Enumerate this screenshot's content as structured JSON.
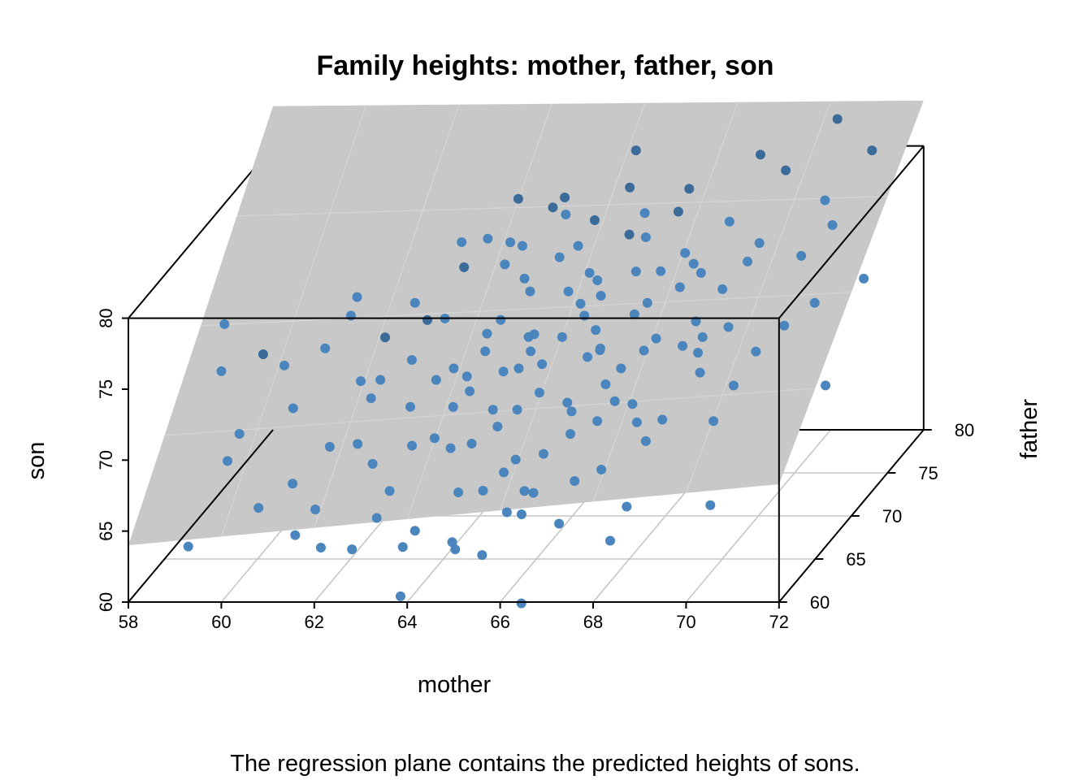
{
  "chart_data": {
    "type": "scatter",
    "subtype": "3d-scatter-with-regression-plane",
    "title": "Family heights: mother, father, son",
    "caption": "The regression plane contains the predicted heights of sons.",
    "axes": {
      "x": {
        "label": "mother",
        "range": [
          58,
          72
        ],
        "ticks": [
          "58",
          "60",
          "62",
          "64",
          "66",
          "68",
          "70",
          "72"
        ]
      },
      "y": {
        "label": "father",
        "range": [
          60,
          80
        ],
        "ticks": [
          "60",
          "65",
          "70",
          "75",
          "80"
        ]
      },
      "z": {
        "label": "son",
        "range": [
          60,
          80
        ],
        "ticks": [
          "60",
          "65",
          "70",
          "75",
          "80"
        ]
      }
    },
    "grid": true,
    "colors": {
      "point": "#3a6b99",
      "point_below_plane": "#4a86bd",
      "plane": "#c8c8c8",
      "grid": "#c6c6c6",
      "box": "#000000"
    },
    "plane": {
      "z_at_x58_y60": 64.0,
      "z_at_x72_y60": 68.3,
      "z_at_x58_y80": 82.8,
      "z_at_x72_y80": 83.2
    },
    "points_xyz": [
      [
        61.0,
        71.5,
        73.2
      ],
      [
        59.5,
        69.0,
        72.0
      ],
      [
        60.3,
        68.0,
        68.8
      ],
      [
        61.9,
        68.5,
        69.2
      ],
      [
        60.6,
        66.0,
        64.7
      ],
      [
        61.4,
        64.0,
        64.1
      ],
      [
        61.2,
        62.5,
        63.2
      ],
      [
        59.3,
        67.0,
        67.6
      ],
      [
        58.2,
        72.0,
        72.3
      ],
      [
        60.6,
        70.5,
        71.5
      ],
      [
        61.6,
        69.0,
        70.1
      ],
      [
        61.4,
        66.0,
        67.3
      ],
      [
        62.1,
        68.5,
        70.5
      ],
      [
        62.7,
        69.0,
        71.6
      ],
      [
        62.5,
        62.0,
        62.5
      ],
      [
        63.0,
        64.0,
        65.4
      ],
      [
        62.8,
        70.5,
        73.5
      ],
      [
        63.2,
        73.0,
        75.7
      ],
      [
        63.5,
        67.0,
        67.3
      ],
      [
        64.3,
        74.0,
        76.6
      ],
      [
        64.3,
        71.0,
        73.2
      ],
      [
        64.1,
        68.0,
        70.0
      ],
      [
        63.9,
        67.0,
        69.5
      ],
      [
        64.0,
        66.0,
        67.2
      ],
      [
        63.7,
        63.0,
        63.2
      ],
      [
        63.7,
        61.0,
        59.8
      ],
      [
        64.8,
        75.0,
        78.7
      ],
      [
        64.5,
        73.0,
        74.9
      ],
      [
        64.9,
        71.0,
        72.0
      ],
      [
        64.6,
        68.0,
        68.7
      ],
      [
        64.5,
        63.0,
        62.4
      ],
      [
        65.5,
        74.0,
        76.6
      ],
      [
        65.6,
        72.0,
        74.6
      ],
      [
        65.1,
        70.0,
        71.6
      ],
      [
        65.5,
        69.0,
        71.3
      ],
      [
        65.4,
        66.0,
        66.4
      ],
      [
        65.9,
        64.0,
        65.4
      ],
      [
        65.3,
        62.0,
        62.1
      ],
      [
        66.3,
        76.0,
        79.5
      ],
      [
        66.6,
        74.0,
        77.4
      ],
      [
        66.3,
        72.0,
        74.3
      ],
      [
        66.6,
        70.0,
        71.8
      ],
      [
        66.2,
        68.0,
        69.2
      ],
      [
        66.0,
        66.0,
        66.8
      ],
      [
        66.8,
        63.0,
        63.7
      ],
      [
        66.3,
        61.0,
        59.3
      ],
      [
        67.5,
        75.0,
        78.4
      ],
      [
        67.3,
        72.0,
        73.8
      ],
      [
        67.8,
        70.0,
        72.5
      ],
      [
        67.6,
        68.0,
        69.1
      ],
      [
        67.4,
        65.0,
        66.3
      ],
      [
        67.9,
        63.0,
        62.5
      ],
      [
        68.6,
        75.0,
        77.7
      ],
      [
        68.3,
        73.0,
        75.3
      ],
      [
        68.5,
        71.0,
        73.1
      ],
      [
        68.9,
        69.0,
        70.7
      ],
      [
        68.4,
        67.0,
        68.6
      ],
      [
        68.1,
        64.0,
        64.3
      ],
      [
        69.5,
        77.0,
        80.1
      ],
      [
        69.4,
        74.0,
        76.8
      ],
      [
        69.2,
        71.0,
        72.7
      ],
      [
        69.5,
        67.0,
        68.5
      ],
      [
        69.9,
        64.0,
        64.4
      ],
      [
        70.3,
        79.0,
        82.5
      ],
      [
        70.5,
        76.0,
        78.6
      ],
      [
        70.4,
        71.0,
        72.8
      ],
      [
        71.2,
        78.0,
        80.9
      ],
      [
        71.8,
        73.0,
        74.9
      ],
      [
        71.6,
        69.0,
        69.8
      ],
      [
        59.8,
        70.0,
        70.6
      ],
      [
        60.9,
        73.0,
        73.6
      ],
      [
        62.3,
        72.0,
        73.8
      ],
      [
        63.1,
        71.0,
        73.3
      ],
      [
        63.4,
        75.0,
        76.5
      ],
      [
        64.9,
        76.0,
        78.8
      ],
      [
        65.7,
        75.0,
        77.8
      ],
      [
        65.9,
        73.0,
        75.3
      ],
      [
        66.1,
        71.0,
        73.5
      ],
      [
        66.9,
        73.0,
        75.4
      ],
      [
        67.2,
        69.0,
        71.0
      ],
      [
        68.0,
        72.0,
        74.9
      ],
      [
        68.8,
        70.0,
        72.6
      ],
      [
        69.3,
        73.0,
        76.1
      ],
      [
        70.3,
        74.0,
        75.9
      ],
      [
        70.9,
        72.0,
        73.8
      ],
      [
        64.2,
        69.5,
        71.9
      ],
      [
        65.2,
        67.5,
        69.0
      ],
      [
        66.4,
        69.5,
        71.5
      ],
      [
        67.0,
        67.0,
        68.5
      ],
      [
        65.7,
        70.5,
        72.3
      ],
      [
        64.7,
        72.5,
        74.3
      ],
      [
        66.7,
        75.5,
        78.0
      ],
      [
        67.8,
        74.0,
        76.1
      ],
      [
        63.6,
        69.0,
        71.0
      ],
      [
        62.0,
        66.0,
        67.5
      ],
      [
        65.3,
        65.0,
        66.1
      ],
      [
        68.2,
        66.0,
        67.7
      ],
      [
        66.9,
        64.5,
        65.8
      ],
      [
        64.8,
        61.5,
        62.8
      ],
      [
        65.6,
        63.5,
        64.2
      ],
      [
        64.0,
        73.5,
        75.6
      ],
      [
        63.3,
        68.5,
        70.5
      ],
      [
        67.5,
        76.5,
        79.1
      ],
      [
        68.8,
        78.0,
        80.6
      ],
      [
        66.2,
        77.5,
        81.2
      ],
      [
        62.9,
        67.5,
        69.2
      ],
      [
        65.0,
        69.0,
        71.0
      ],
      [
        67.1,
        71.5,
        73.3
      ],
      [
        64.4,
        64.5,
        65.0
      ],
      [
        69.7,
        68.5,
        70.1
      ],
      [
        59.2,
        66.0,
        66.3
      ],
      [
        60.1,
        64.5,
        63.9
      ],
      [
        58.9,
        62.5,
        62.4
      ],
      [
        58.6,
        69.0,
        70.8
      ],
      [
        62.4,
        65.5,
        66.4
      ],
      [
        66.5,
        66.5,
        67.9
      ],
      [
        64.7,
        68.8,
        70.9
      ],
      [
        65.6,
        68.0,
        69.9
      ],
      [
        66.1,
        72.8,
        74.9
      ],
      [
        64.1,
        70.4,
        72.6
      ],
      [
        66.9,
        68.8,
        70.0
      ],
      [
        63.2,
        65.8,
        67.5
      ],
      [
        66.4,
        67.3,
        69.0
      ],
      [
        68.4,
        69.8,
        72.1
      ],
      [
        65.1,
        74.0,
        75.8
      ],
      [
        67.3,
        67.5,
        69.6
      ],
      [
        64.9,
        66.7,
        68.3
      ],
      [
        63.9,
        68.9,
        70.5
      ],
      [
        66.0,
        64.6,
        64.9
      ],
      [
        62.8,
        63.5,
        63.8
      ],
      [
        68.7,
        70.0,
        71.5
      ],
      [
        66.8,
        75.0,
        76.6
      ],
      [
        65.0,
        75.5,
        77.9
      ],
      [
        63.9,
        76.0,
        78.7
      ],
      [
        67.6,
        69.6,
        71.9
      ],
      [
        68.0,
        73.9,
        75.4
      ],
      [
        64.9,
        64.7,
        65.0
      ],
      [
        66.5,
        70.0,
        73.1
      ],
      [
        65.1,
        70.5,
        72.5
      ],
      [
        62.0,
        69.8,
        72.7
      ],
      [
        64.5,
        65.7,
        67.7
      ],
      [
        67.9,
        66.7,
        68.6
      ],
      [
        61.8,
        62.2,
        62.5
      ],
      [
        63.5,
        62.6,
        62.3
      ],
      [
        65.9,
        63.6,
        64.0
      ],
      [
        68.9,
        72.1,
        74.7
      ],
      [
        67.4,
        73.2,
        75.3
      ],
      [
        66.7,
        69.3,
        72.1
      ],
      [
        65.8,
        72.4,
        73.5
      ],
      [
        63.9,
        74.9,
        76.3
      ],
      [
        70.8,
        75.1,
        77.4
      ],
      [
        69.9,
        70.3,
        71.4
      ],
      [
        62.9,
        74.6,
        76.5
      ]
    ]
  }
}
